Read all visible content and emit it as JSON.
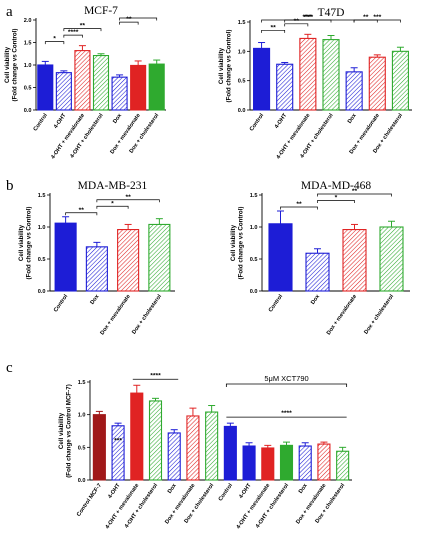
{
  "panel_labels": [
    "a",
    "b",
    "c"
  ],
  "chart_data": [
    {
      "type": "bar",
      "panel": "a",
      "title": "MCF-7",
      "ylabel": "Cell viability\n(Fold change vs Control)",
      "ylim": [
        0,
        2.0
      ],
      "yticks": [
        "0.0",
        "0.5",
        "1.0",
        "1.5",
        "2.0"
      ],
      "categories": [
        "Control",
        "4-OHT",
        "4-OHT + mevalonate",
        "4-OHT + cholesterol",
        "Dox",
        "Dox + mevalonate",
        "Dox + cholesterol"
      ],
      "values": [
        1.0,
        0.83,
        1.32,
        1.21,
        0.73,
        0.99,
        1.02
      ],
      "errors": [
        0.08,
        0.04,
        0.11,
        0.04,
        0.05,
        0.1,
        0.09
      ],
      "colors": [
        "#1d1dd6",
        "#1d1dd6",
        "#e02323",
        "#2faa2f",
        "#1d1dd6",
        "#e02323",
        "#2faa2f"
      ],
      "hatched": [
        false,
        true,
        true,
        true,
        true,
        false,
        false
      ],
      "significance": [
        {
          "from": 0,
          "to": 1,
          "label": "*"
        },
        {
          "from": 1,
          "to": 2,
          "label": "****"
        },
        {
          "from": 1,
          "to": 3,
          "label": "**"
        },
        {
          "from": 4,
          "to": 5,
          "label": "**"
        },
        {
          "from": 4,
          "to": 6,
          "label": ""
        }
      ]
    },
    {
      "type": "bar",
      "panel": "a",
      "title": "T47D",
      "ylabel": "Cell viability\n(Fold change vs Control)",
      "ylim": [
        0,
        1.5
      ],
      "yticks": [
        "0.0",
        "0.5",
        "1.0",
        "1.5"
      ],
      "categories": [
        "Control",
        "4-OHT",
        "4-OHT + mevalonate",
        "4-OHT + cholesterol",
        "Dox",
        "Dox + mevalonate",
        "Dox + cholesterol"
      ],
      "values": [
        1.05,
        0.78,
        1.22,
        1.2,
        0.65,
        0.9,
        1.0
      ],
      "errors": [
        0.1,
        0.03,
        0.07,
        0.07,
        0.07,
        0.04,
        0.07
      ],
      "colors": [
        "#1d1dd6",
        "#1d1dd6",
        "#e02323",
        "#2faa2f",
        "#1d1dd6",
        "#e02323",
        "#2faa2f"
      ],
      "hatched": [
        false,
        true,
        true,
        true,
        true,
        true,
        true
      ],
      "significance": [
        {
          "from": 0,
          "to": 1,
          "label": "**"
        },
        {
          "from": 1,
          "to": 2,
          "label": "**"
        },
        {
          "from": 1,
          "to": 3,
          "label": "****"
        },
        {
          "from": 0,
          "to": 4,
          "label": "***"
        },
        {
          "from": 4,
          "to": 5,
          "label": "**"
        },
        {
          "from": 4,
          "to": 6,
          "label": "***"
        }
      ]
    },
    {
      "type": "bar",
      "panel": "b",
      "title": "MDA-MB-231",
      "ylabel": "Cell viability\n(Fold change vs Control)",
      "ylim": [
        0,
        1.5
      ],
      "yticks": [
        "0.0",
        "0.5",
        "1.0",
        "1.5"
      ],
      "categories": [
        "Control",
        "Dox",
        "Dox + mevalonate",
        "Dox + cholesterol"
      ],
      "values": [
        1.06,
        0.69,
        0.96,
        1.04
      ],
      "errors": [
        0.1,
        0.07,
        0.08,
        0.09
      ],
      "colors": [
        "#1d1dd6",
        "#1d1dd6",
        "#e02323",
        "#2faa2f"
      ],
      "hatched": [
        false,
        true,
        true,
        true
      ],
      "significance": [
        {
          "from": 0,
          "to": 1,
          "label": "**"
        },
        {
          "from": 1,
          "to": 2,
          "label": "*"
        },
        {
          "from": 1,
          "to": 3,
          "label": "**"
        }
      ]
    },
    {
      "type": "bar",
      "panel": "b",
      "title": "MDA-MD-468",
      "ylabel": "Cell viability\n(Fold change vs Control)",
      "ylim": [
        0,
        1.5
      ],
      "yticks": [
        "0.0",
        "0.5",
        "1.0",
        "1.5"
      ],
      "categories": [
        "Control",
        "Dox",
        "Dox + mevalonate",
        "Dox + cholesterol"
      ],
      "values": [
        1.05,
        0.59,
        0.96,
        1.0
      ],
      "errors": [
        0.2,
        0.07,
        0.08,
        0.09
      ],
      "colors": [
        "#1d1dd6",
        "#1d1dd6",
        "#e02323",
        "#2faa2f"
      ],
      "hatched": [
        false,
        true,
        true,
        true
      ],
      "significance": [
        {
          "from": 0,
          "to": 1,
          "label": "**"
        },
        {
          "from": 1,
          "to": 2,
          "label": "*"
        },
        {
          "from": 1,
          "to": 3,
          "label": "**"
        }
      ]
    },
    {
      "type": "bar",
      "panel": "c",
      "ylabel": "Cell viability\n(Fold change vs Control MCF-7)",
      "ylim": [
        0,
        1.5
      ],
      "yticks": [
        "0.0",
        "0.5",
        "1.0",
        "1.5"
      ],
      "categories": [
        "Control MCF-7",
        "4-OHT",
        "4-OHT + mevalonate",
        "4-OHT + cholesterol",
        "Dox",
        "Dox + mevalonate",
        "Dox + cholesterol",
        "Control",
        "4-OHT",
        "4-OHT + mevalonate",
        "4-OHT + cholesterol",
        "Dox",
        "Dox + mevalonate",
        "Dox + cholesterol"
      ],
      "values": [
        1.0,
        0.83,
        1.33,
        1.21,
        0.72,
        0.98,
        1.04,
        0.82,
        0.52,
        0.49,
        0.53,
        0.52,
        0.55,
        0.44
      ],
      "errors": [
        0.05,
        0.04,
        0.12,
        0.04,
        0.05,
        0.12,
        0.1,
        0.05,
        0.05,
        0.04,
        0.05,
        0.05,
        0.03,
        0.06
      ],
      "colors": [
        "#a01818",
        "#1d1dd6",
        "#e02323",
        "#2faa2f",
        "#1d1dd6",
        "#e02323",
        "#2faa2f",
        "#1d1dd6",
        "#1d1dd6",
        "#e02323",
        "#2faa2f",
        "#1d1dd6",
        "#e02323",
        "#2faa2f"
      ],
      "hatched": [
        false,
        true,
        false,
        true,
        true,
        true,
        true,
        false,
        false,
        false,
        false,
        true,
        true,
        true
      ],
      "bar_labels": [
        {
          "index": 1,
          "label": "***"
        }
      ],
      "brackets": [
        {
          "from": 2,
          "to": 4,
          "label": "****"
        },
        {
          "from": 7,
          "to": 13,
          "label": "****"
        }
      ],
      "group_annotation": {
        "from": 7,
        "to": 13,
        "label": "5μM XCT790"
      }
    }
  ]
}
